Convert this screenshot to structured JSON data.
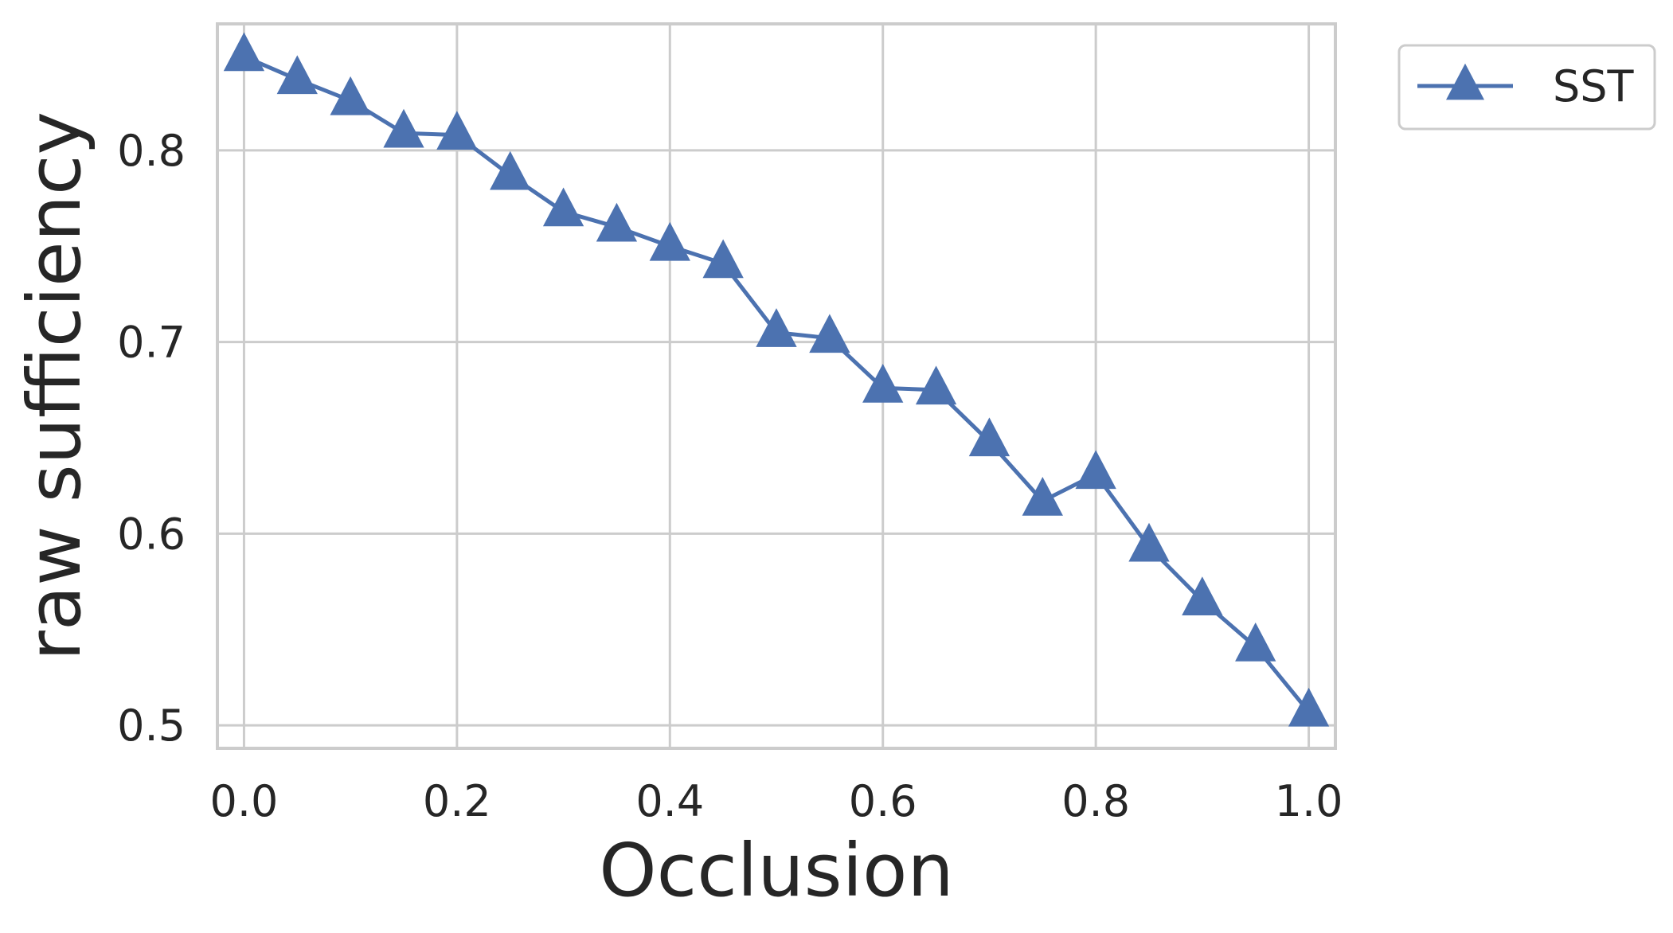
{
  "chart_data": {
    "type": "line",
    "xlabel": "Occlusion",
    "ylabel": "raw sufficiency",
    "xlim": [
      -0.025,
      1.025
    ],
    "ylim": [
      0.488,
      0.866
    ],
    "xticks": [
      0.0,
      0.2,
      0.4,
      0.6,
      0.8,
      1.0
    ],
    "xtick_labels": [
      "0.0",
      "0.2",
      "0.4",
      "0.6",
      "0.8",
      "1.0"
    ],
    "yticks": [
      0.5,
      0.6,
      0.7,
      0.8
    ],
    "ytick_labels": [
      "0.5",
      "0.6",
      "0.7",
      "0.8"
    ],
    "grid": true,
    "legend_position": "outside top-right",
    "series": [
      {
        "name": "SST",
        "color": "#4c72b0",
        "marker": "triangle-up",
        "x": [
          0.0,
          0.05,
          0.1,
          0.15,
          0.2,
          0.25,
          0.3,
          0.35,
          0.4,
          0.45,
          0.5,
          0.55,
          0.6,
          0.65,
          0.7,
          0.75,
          0.8,
          0.85,
          0.9,
          0.95,
          1.0
        ],
        "y": [
          0.849,
          0.837,
          0.826,
          0.809,
          0.808,
          0.787,
          0.768,
          0.76,
          0.75,
          0.741,
          0.705,
          0.702,
          0.676,
          0.675,
          0.648,
          0.617,
          0.631,
          0.593,
          0.565,
          0.541,
          0.507
        ]
      }
    ]
  }
}
